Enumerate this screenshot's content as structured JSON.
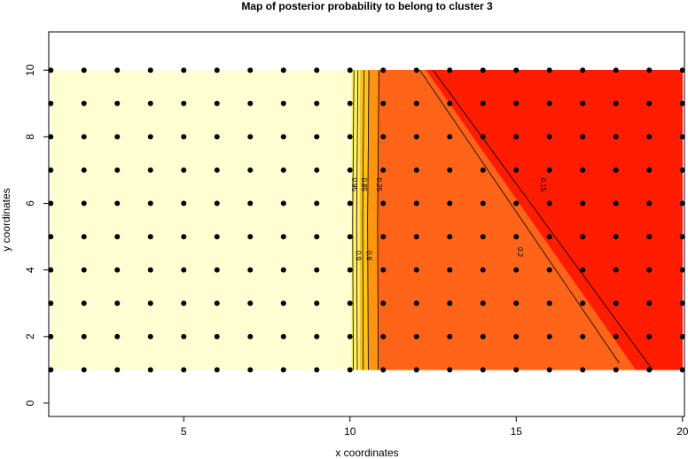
{
  "chart_data": {
    "type": "scatter",
    "title": "Map of posterior probability to belong to cluster  3",
    "xlabel": "x coordinates",
    "ylabel": "y coordinates",
    "xlim": [
      0.94,
      20.06
    ],
    "ylim": [
      -0.4,
      11.15
    ],
    "xticks": [
      5,
      10,
      15,
      20
    ],
    "yticks": [
      0,
      2,
      4,
      6,
      8,
      10
    ],
    "point_color": "#000000",
    "regions": [
      {
        "color": "#ffffd2",
        "x": [
          1,
          10.05,
          10.05,
          1
        ],
        "y": [
          1,
          1,
          10,
          10
        ]
      },
      {
        "color": "#fff06a",
        "x": [
          10.05,
          10.3,
          10.3,
          10.05
        ],
        "y": [
          1,
          1,
          10,
          10
        ]
      },
      {
        "color": "#ffc21c",
        "x": [
          10.3,
          10.55,
          10.55,
          10.3
        ],
        "y": [
          1,
          1,
          10,
          10
        ]
      },
      {
        "color": "#ff9410",
        "x": [
          10.55,
          10.85,
          10.85,
          10.55
        ],
        "y": [
          1,
          1,
          10,
          10
        ]
      },
      {
        "color": "#ff6418",
        "x": [
          10.85,
          18.6,
          12.3,
          10.85
        ],
        "y": [
          1,
          1,
          10,
          10
        ]
      },
      {
        "color": "#ff1c00",
        "x": [
          12.3,
          20,
          20,
          18.6
        ],
        "y": [
          10,
          10,
          1,
          1
        ]
      },
      {
        "color": "#ff6418",
        "x": [
          17.1,
          17.3,
          17.9,
          17.2
        ],
        "y": [
          1,
          2,
          1.2,
          1
        ]
      }
    ],
    "contours": [
      {
        "level": 0.95,
        "x": [
          10.1,
          10.08,
          10.12
        ],
        "y": [
          1,
          5.5,
          10
        ]
      },
      {
        "level": 0.9,
        "x": [
          10.22,
          10.2,
          10.24
        ],
        "y": [
          1,
          5.5,
          10
        ]
      },
      {
        "level": 0.85,
        "x": [
          10.4,
          10.38,
          10.42
        ],
        "y": [
          1,
          5.5,
          10
        ]
      },
      {
        "level": 0.8,
        "x": [
          10.55,
          10.53,
          10.57
        ],
        "y": [
          1,
          5.5,
          10
        ]
      },
      {
        "level": 0.25,
        "x": [
          10.85,
          10.83,
          10.87
        ],
        "y": [
          1,
          5.5,
          10
        ]
      },
      {
        "level": 0.2,
        "x": [
          12.1,
          18.1
        ],
        "y": [
          10,
          1.2
        ]
      },
      {
        "level": 0.15,
        "x": [
          12.5,
          19.1
        ],
        "y": [
          10,
          1
        ]
      }
    ],
    "x": [
      1,
      2,
      3,
      4,
      5,
      6,
      7,
      8,
      9,
      10,
      11,
      12,
      13,
      14,
      15,
      16,
      17,
      18,
      19,
      20,
      1,
      2,
      3,
      4,
      5,
      6,
      7,
      8,
      9,
      10,
      11,
      12,
      13,
      14,
      15,
      16,
      17,
      18,
      19,
      20,
      1,
      2,
      3,
      4,
      5,
      6,
      7,
      8,
      9,
      10,
      11,
      12,
      13,
      14,
      15,
      16,
      17,
      18,
      19,
      20,
      1,
      2,
      3,
      4,
      5,
      6,
      7,
      8,
      9,
      10,
      11,
      12,
      13,
      14,
      15,
      16,
      17,
      18,
      19,
      20,
      1,
      2,
      3,
      4,
      5,
      6,
      7,
      8,
      9,
      10,
      11,
      12,
      13,
      14,
      15,
      16,
      17,
      18,
      19,
      20,
      1,
      2,
      3,
      4,
      5,
      6,
      7,
      8,
      9,
      10,
      11,
      12,
      13,
      14,
      15,
      16,
      17,
      18,
      19,
      20,
      1,
      2,
      3,
      4,
      5,
      6,
      7,
      8,
      9,
      10,
      11,
      12,
      13,
      14,
      15,
      16,
      17,
      18,
      19,
      20,
      1,
      2,
      3,
      4,
      5,
      6,
      7,
      8,
      9,
      10,
      11,
      12,
      13,
      14,
      15,
      16,
      17,
      18,
      19,
      20,
      1,
      2,
      3,
      4,
      5,
      6,
      7,
      8,
      9,
      10,
      11,
      12,
      13,
      14,
      15,
      16,
      17,
      18,
      19,
      20,
      1,
      2,
      3,
      4,
      5,
      6,
      7,
      8,
      9,
      10,
      11,
      12,
      13,
      14,
      15,
      16,
      17,
      18,
      19,
      20
    ],
    "y": [
      1,
      1,
      1,
      1,
      1,
      1,
      1,
      1,
      1,
      1,
      1,
      1,
      1,
      1,
      1,
      1,
      1,
      1,
      1,
      1,
      2,
      2,
      2,
      2,
      2,
      2,
      2,
      2,
      2,
      2,
      2,
      2,
      2,
      2,
      2,
      2,
      2,
      2,
      2,
      2,
      3,
      3,
      3,
      3,
      3,
      3,
      3,
      3,
      3,
      3,
      3,
      3,
      3,
      3,
      3,
      3,
      3,
      3,
      3,
      3,
      4,
      4,
      4,
      4,
      4,
      4,
      4,
      4,
      4,
      4,
      4,
      4,
      4,
      4,
      4,
      4,
      4,
      4,
      4,
      4,
      5,
      5,
      5,
      5,
      5,
      5,
      5,
      5,
      5,
      5,
      5,
      5,
      5,
      5,
      5,
      5,
      5,
      5,
      5,
      5,
      6,
      6,
      6,
      6,
      6,
      6,
      6,
      6,
      6,
      6,
      6,
      6,
      6,
      6,
      6,
      6,
      6,
      6,
      6,
      6,
      7,
      7,
      7,
      7,
      7,
      7,
      7,
      7,
      7,
      7,
      7,
      7,
      7,
      7,
      7,
      7,
      7,
      7,
      7,
      7,
      8,
      8,
      8,
      8,
      8,
      8,
      8,
      8,
      8,
      8,
      8,
      8,
      8,
      8,
      8,
      8,
      8,
      8,
      8,
      8,
      9,
      9,
      9,
      9,
      9,
      9,
      9,
      9,
      9,
      9,
      9,
      9,
      9,
      9,
      9,
      9,
      9,
      9,
      9,
      9,
      10,
      10,
      10,
      10,
      10,
      10,
      10,
      10,
      10,
      10,
      10,
      10,
      10,
      10,
      10,
      10,
      10,
      10,
      10,
      10
    ]
  }
}
